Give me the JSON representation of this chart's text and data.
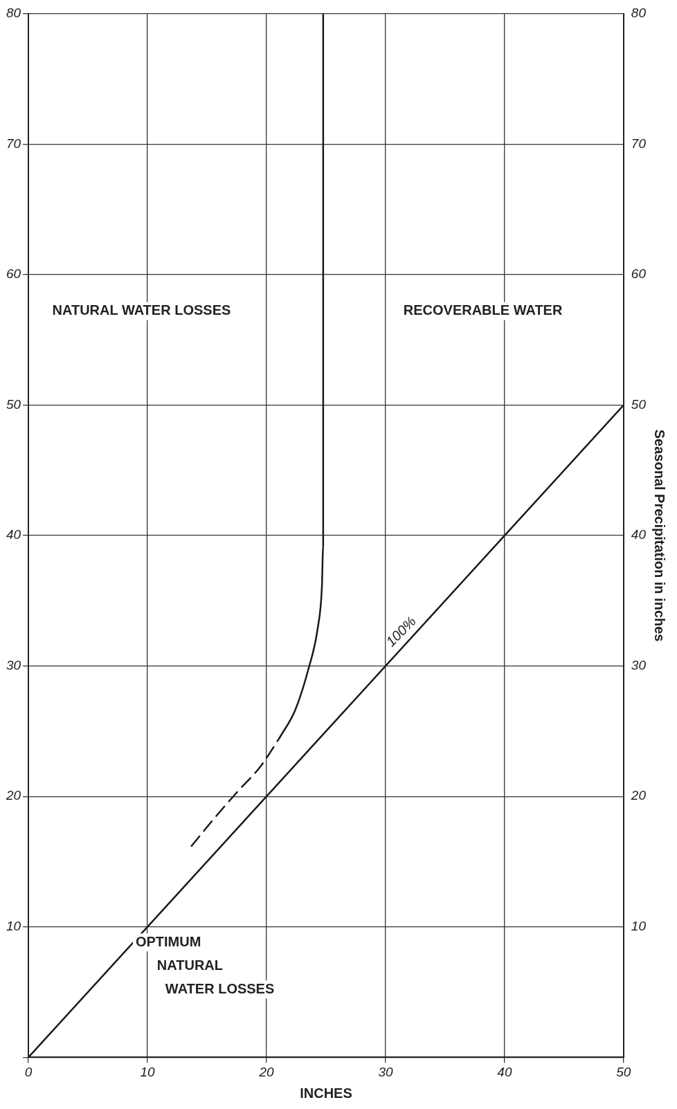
{
  "chart_data": {
    "type": "line",
    "xlabel": "INCHES",
    "y2label": "Seasonal Precipitation in inches",
    "xlim": [
      0,
      50
    ],
    "xticks": [
      0,
      10,
      20,
      30,
      40,
      50
    ],
    "ylim": [
      0,
      80
    ],
    "yticks": [
      {
        "value": 0,
        "label": null
      },
      10,
      20,
      30,
      40,
      50,
      60,
      70,
      80
    ],
    "y2lim": [
      0,
      80
    ],
    "y2ticks": [
      {
        "value": 0,
        "label": null
      },
      10,
      20,
      30,
      40,
      50,
      60,
      70,
      80
    ],
    "grid": true,
    "legend": false,
    "marker": "none",
    "tick_labels": "xy",
    "series": [
      {
        "color": "#1a1a1a",
        "line_style": "solid",
        "x": [
          0,
          50
        ],
        "values": [
          0,
          50
        ]
      },
      {
        "color": "#1a1a1a",
        "line_style": "dashed",
        "x": [
          13.7,
          15.5,
          17.5,
          19.5,
          21.1
        ],
        "values": [
          16.2,
          18.2,
          20.3,
          22.3,
          24.5
        ]
      },
      {
        "color": "#1a1a1a",
        "line_style": "solid",
        "x": [
          21.1,
          22.4,
          23.5,
          24.3,
          24.65,
          24.76,
          24.76
        ],
        "values": [
          24.5,
          26.6,
          29.7,
          32.9,
          36,
          39.2,
          80
        ]
      }
    ],
    "annotations": [
      "NATURAL WATER LOSSES",
      "RECOVERABLE WATER",
      "OPTIMUM\nNATURAL\nWATER LOSSES",
      {
        "text": "100%",
        "x": 32,
        "y": 32
      }
    ]
  }
}
